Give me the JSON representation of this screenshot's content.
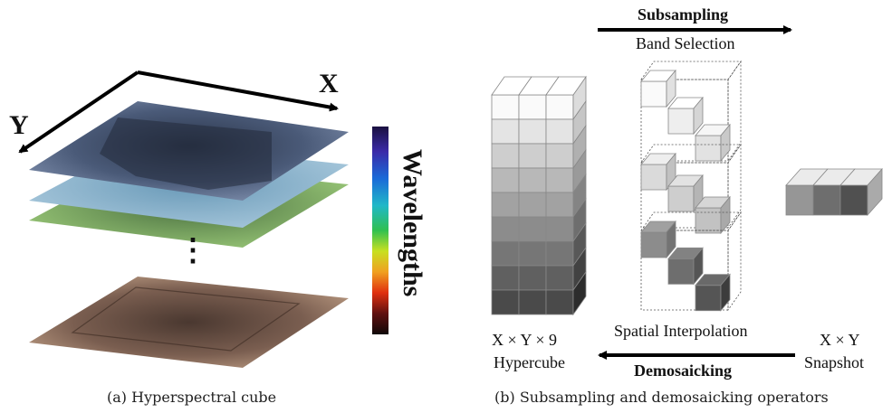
{
  "panel_a": {
    "caption": "(a) Hyperspectral cube",
    "axis_x": "X",
    "axis_y": "Y",
    "colorbar_label": "Wavelengths",
    "ellipsis": "⋮"
  },
  "panel_b": {
    "caption": "(b) Subsampling and demosaicking operators",
    "top_arrow_bold": "Subsampling",
    "top_arrow_sub": "Band Selection",
    "bottom_arrow_top": "Spatial Interpolation",
    "bottom_arrow_bold": "Demosaicking",
    "hypercube_dims": "X × Y × 9",
    "hypercube_name": "Hypercube",
    "snapshot_dims": "X × Y",
    "snapshot_name": "Snapshot"
  },
  "colors": {
    "layer_top": "#4a5a78",
    "layer_2": "#8ab0c8",
    "layer_3": "#7fa85a",
    "layer_bottom": "#8a6a58"
  }
}
